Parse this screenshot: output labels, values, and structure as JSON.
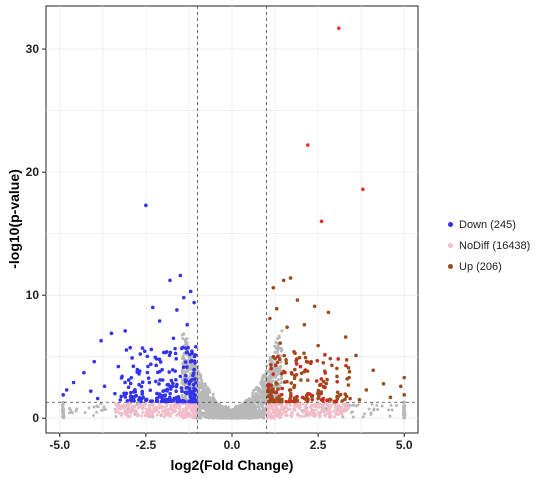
{
  "chart_data": {
    "type": "scatter",
    "title": "",
    "xlabel": "log2(Fold Change)",
    "ylabel": "-log10(p-value)",
    "xlim": [
      -5.4,
      5.4
    ],
    "ylim": [
      -1.2,
      33.5
    ],
    "xticks": [
      -5.0,
      -2.5,
      0.0,
      2.5,
      5.0
    ],
    "xtick_labels": [
      "-5.0",
      "-2.5",
      "0.0",
      "2.5",
      "5.0"
    ],
    "yticks": [
      0,
      10,
      20,
      30
    ],
    "ytick_labels": [
      "0",
      "10",
      "20",
      "30"
    ],
    "grid": true,
    "legend_position": "right",
    "thresholds": {
      "x": [
        -1,
        1
      ],
      "y": 1.3
    },
    "series": [
      {
        "name": "Down (245)",
        "color": "#3333ee",
        "points": [
          [
            -2.5,
            17.3
          ],
          [
            -1.5,
            11.6
          ],
          [
            -1.8,
            11.2
          ],
          [
            -1.2,
            10.3
          ],
          [
            -1.4,
            9.8
          ],
          [
            -1.1,
            9.4
          ],
          [
            -2.3,
            9.0
          ],
          [
            -1.6,
            8.8
          ],
          [
            -2.1,
            7.9
          ],
          [
            -1.3,
            7.6
          ],
          [
            -3.1,
            7.1
          ],
          [
            -3.5,
            6.9
          ],
          [
            -3.8,
            6.3
          ],
          [
            -1.7,
            6.5
          ],
          [
            -2.6,
            5.7
          ],
          [
            -1.9,
            5.4
          ],
          [
            -2.9,
            4.9
          ],
          [
            -4.0,
            4.6
          ],
          [
            -1.2,
            4.6
          ],
          [
            -2.2,
            4.3
          ],
          [
            -3.3,
            4.2
          ],
          [
            -4.3,
            3.7
          ],
          [
            -2.7,
            3.6
          ],
          [
            -1.5,
            3.4
          ],
          [
            -3.0,
            3.1
          ],
          [
            -4.6,
            2.9
          ],
          [
            -2.4,
            2.9
          ],
          [
            -3.7,
            2.6
          ],
          [
            -1.8,
            2.6
          ],
          [
            -4.8,
            2.3
          ],
          [
            -4.9,
            1.9
          ],
          [
            -4.1,
            2.2
          ],
          [
            -3.4,
            2.0
          ],
          [
            -2.0,
            2.2
          ],
          [
            -1.3,
            2.1
          ],
          [
            -2.8,
            1.8
          ],
          [
            -3.9,
            1.6
          ],
          [
            -1.6,
            1.7
          ],
          [
            -1.1,
            1.6
          ],
          [
            -2.5,
            1.5
          ],
          [
            -1.7,
            1.45
          ],
          [
            -1.2,
            1.4
          ]
        ]
      },
      {
        "name": "NoDiff (16438)",
        "color": "#f2bcc8",
        "points": []
      },
      {
        "name": "Up (206)",
        "color": "#9c4b1a",
        "points": [
          [
            3.1,
            31.7
          ],
          [
            2.2,
            22.2
          ],
          [
            3.8,
            18.6
          ],
          [
            2.6,
            16.0
          ],
          [
            1.7,
            11.4
          ],
          [
            1.5,
            11.2
          ],
          [
            1.2,
            10.6
          ],
          [
            1.9,
            9.6
          ],
          [
            2.4,
            9.1
          ],
          [
            1.3,
            8.9
          ],
          [
            2.8,
            8.6
          ],
          [
            1.1,
            8.1
          ],
          [
            2.1,
            7.6
          ],
          [
            1.6,
            7.4
          ],
          [
            3.3,
            6.6
          ],
          [
            1.4,
            6.1
          ],
          [
            2.5,
            5.9
          ],
          [
            1.8,
            5.4
          ],
          [
            3.6,
            5.1
          ],
          [
            1.2,
            5.0
          ],
          [
            2.3,
            4.6
          ],
          [
            2.9,
            4.3
          ],
          [
            4.1,
            3.9
          ],
          [
            1.5,
            3.8
          ],
          [
            3.4,
            3.3
          ],
          [
            2.0,
            3.1
          ],
          [
            4.4,
            2.8
          ],
          [
            1.3,
            2.8
          ],
          [
            5.0,
            3.3
          ],
          [
            2.7,
            2.5
          ],
          [
            3.9,
            2.3
          ],
          [
            1.7,
            2.3
          ],
          [
            4.9,
            2.6
          ],
          [
            2.2,
            2.0
          ],
          [
            3.1,
            1.8
          ],
          [
            1.1,
            1.9
          ],
          [
            4.6,
            1.7
          ],
          [
            2.5,
            1.6
          ],
          [
            1.4,
            1.5
          ],
          [
            3.7,
            1.5
          ],
          [
            5.0,
            1.9
          ],
          [
            1.9,
            1.45
          ]
        ]
      }
    ]
  }
}
